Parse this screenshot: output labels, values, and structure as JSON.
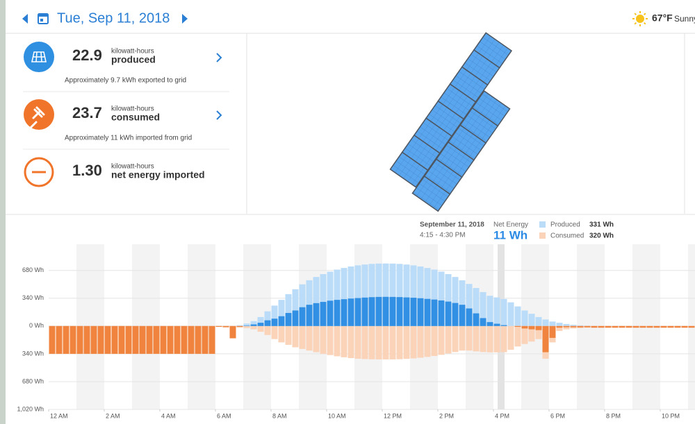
{
  "header": {
    "date": "Tue, Sep 11, 2018",
    "temperature": "67°F",
    "weather": "Sunny"
  },
  "stats": [
    {
      "value": "22.9",
      "unit": "kilowatt-hours",
      "label": "produced",
      "note": "Approximately 9.7 kWh exported to grid"
    },
    {
      "value": "23.7",
      "unit": "kilowatt-hours",
      "label": "consumed",
      "note": "Approximately 11 kWh imported from grid"
    },
    {
      "value": "1.30",
      "unit": "kilowatt-hours",
      "label": "net energy imported"
    }
  ],
  "tooltip": {
    "date": "September 11, 2018",
    "time": "4:15 - 4:30 PM",
    "net_label": "Net Energy",
    "net_value": "11 Wh",
    "produced_value": "331 Wh",
    "consumed_value": "320 Wh"
  },
  "chart_data": {
    "type": "bar",
    "x": [
      0,
      0.25,
      0.5,
      0.75,
      1,
      1.25,
      1.5,
      1.75,
      2,
      2.25,
      2.5,
      2.75,
      3,
      3.25,
      3.5,
      3.75,
      4,
      4.25,
      4.5,
      4.75,
      5,
      5.25,
      5.5,
      5.75,
      6,
      6.25,
      6.5,
      6.75,
      7,
      7.25,
      7.5,
      7.75,
      8,
      8.25,
      8.5,
      8.75,
      9,
      9.25,
      9.5,
      9.75,
      10,
      10.25,
      10.5,
      10.75,
      11,
      11.25,
      11.5,
      11.75,
      12,
      12.25,
      12.5,
      12.75,
      13,
      13.25,
      13.5,
      13.75,
      14,
      14.25,
      14.5,
      14.75,
      15,
      15.25,
      15.5,
      15.75,
      16,
      16.25,
      16.5,
      16.75,
      17,
      17.25,
      17.5,
      17.75,
      18,
      18.25,
      18.5,
      18.75,
      19,
      19.25,
      19.5,
      19.75,
      20,
      20.25,
      20.5,
      20.75,
      21,
      21.25,
      21.5,
      21.75,
      22,
      22.25,
      22.5,
      22.75,
      23
    ],
    "xlim": [
      0,
      23.25
    ],
    "xticks": [
      {
        "value": 0,
        "label": "12 AM"
      },
      {
        "value": 2,
        "label": "2 AM"
      },
      {
        "value": 4,
        "label": "4 AM"
      },
      {
        "value": 6,
        "label": "6 AM"
      },
      {
        "value": 8,
        "label": "8 AM"
      },
      {
        "value": 10,
        "label": "10 AM"
      },
      {
        "value": 12,
        "label": "12 PM"
      },
      {
        "value": 14,
        "label": "2 PM"
      },
      {
        "value": 16,
        "label": "4 PM"
      },
      {
        "value": 18,
        "label": "6 PM"
      },
      {
        "value": 20,
        "label": "8 PM"
      },
      {
        "value": 22,
        "label": "10 PM"
      }
    ],
    "ylim": [
      -1020,
      1000
    ],
    "yticks": [
      {
        "value": 680,
        "label": "680 Wh"
      },
      {
        "value": 340,
        "label": "340 Wh"
      },
      {
        "value": 0,
        "label": "0 Wh"
      },
      {
        "value": -340,
        "label": "340 Wh"
      },
      {
        "value": -680,
        "label": "680 Wh"
      },
      {
        "value": -1020,
        "label": "1,020 Wh"
      }
    ],
    "grid": true,
    "series": [
      {
        "name": "Produced",
        "color": "#badcf8",
        "values": [
          0,
          0,
          0,
          0,
          0,
          0,
          0,
          0,
          0,
          0,
          0,
          0,
          0,
          0,
          0,
          0,
          0,
          0,
          0,
          0,
          0,
          0,
          0,
          0,
          0,
          0,
          0,
          10,
          30,
          60,
          110,
          180,
          250,
          320,
          390,
          450,
          510,
          560,
          600,
          635,
          665,
          690,
          710,
          728,
          742,
          752,
          760,
          764,
          765,
          764,
          760,
          752,
          742,
          728,
          710,
          690,
          665,
          635,
          600,
          560,
          515,
          465,
          415,
          370,
          350,
          331,
          290,
          240,
          190,
          150,
          110,
          80,
          55,
          40,
          25,
          15,
          8,
          4,
          0,
          0,
          0,
          0,
          0,
          0,
          0,
          0,
          0,
          0,
          0,
          0,
          0,
          0,
          0
        ]
      },
      {
        "name": "Consumed",
        "color": "#fad3b9",
        "values": [
          -340,
          -340,
          -340,
          -340,
          -340,
          -340,
          -340,
          -340,
          -340,
          -340,
          -340,
          -340,
          -340,
          -340,
          -340,
          -340,
          -340,
          -340,
          -340,
          -340,
          -340,
          -340,
          -340,
          -340,
          -10,
          -15,
          -150,
          -20,
          -25,
          -40,
          -70,
          -110,
          -160,
          -200,
          -230,
          -260,
          -280,
          -300,
          -320,
          -340,
          -355,
          -370,
          -382,
          -392,
          -400,
          -404,
          -407,
          -408,
          -408,
          -408,
          -406,
          -402,
          -396,
          -388,
          -378,
          -366,
          -352,
          -336,
          -318,
          -300,
          -300,
          -310,
          -318,
          -322,
          -322,
          -320,
          -290,
          -250,
          -220,
          -190,
          -160,
          -400,
          -200,
          -60,
          -40,
          -30,
          -25,
          -20,
          -20,
          -20,
          -20,
          -20,
          -20,
          -20,
          -20,
          -20,
          -20,
          -20,
          -20,
          -20,
          -20,
          -20,
          -20
        ]
      },
      {
        "name": "Net Energy",
        "color": "#3190e4",
        "negative_color": "#f0843e",
        "values": [
          -340,
          -340,
          -340,
          -340,
          -340,
          -340,
          -340,
          -340,
          -340,
          -340,
          -340,
          -340,
          -340,
          -340,
          -340,
          -340,
          -340,
          -340,
          -340,
          -340,
          -340,
          -340,
          -340,
          -340,
          -10,
          -15,
          -150,
          -10,
          5,
          20,
          40,
          70,
          90,
          120,
          160,
          190,
          230,
          260,
          280,
          295,
          310,
          320,
          328,
          336,
          342,
          348,
          353,
          356,
          357,
          356,
          354,
          350,
          346,
          340,
          332,
          324,
          313,
          299,
          282,
          260,
          215,
          155,
          97,
          48,
          28,
          11,
          0,
          -10,
          -30,
          -40,
          -50,
          -320,
          -145,
          -20,
          -15,
          -15,
          -17,
          -16,
          -20,
          -20,
          -20,
          -20,
          -20,
          -20,
          -20,
          -20,
          -20,
          -20,
          -20,
          -20,
          -20,
          -20,
          -20
        ]
      }
    ]
  }
}
